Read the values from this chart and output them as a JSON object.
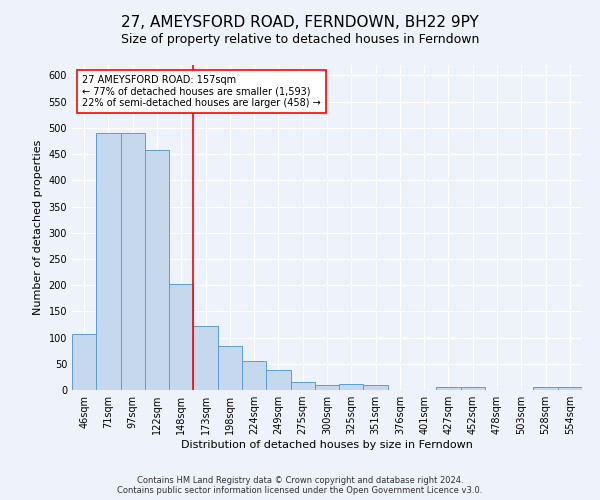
{
  "title1": "27, AMEYSFORD ROAD, FERNDOWN, BH22 9PY",
  "title2": "Size of property relative to detached houses in Ferndown",
  "xlabel": "Distribution of detached houses by size in Ferndown",
  "ylabel": "Number of detached properties",
  "categories": [
    "46sqm",
    "71sqm",
    "97sqm",
    "122sqm",
    "148sqm",
    "173sqm",
    "198sqm",
    "224sqm",
    "249sqm",
    "275sqm",
    "300sqm",
    "325sqm",
    "351sqm",
    "376sqm",
    "401sqm",
    "427sqm",
    "452sqm",
    "478sqm",
    "503sqm",
    "528sqm",
    "554sqm"
  ],
  "values": [
    107,
    490,
    490,
    457,
    203,
    122,
    84,
    55,
    38,
    16,
    10,
    12,
    10,
    0,
    0,
    5,
    5,
    0,
    0,
    6,
    6
  ],
  "bar_color": "#c5d8ed",
  "bar_edge_color": "#5a9fd4",
  "red_line_index": 4.5,
  "annotation_text": "27 AMEYSFORD ROAD: 157sqm\n← 77% of detached houses are smaller (1,593)\n22% of semi-detached houses are larger (458) →",
  "annotation_box_color": "white",
  "annotation_box_edge": "red",
  "ylim": [
    0,
    620
  ],
  "yticks": [
    0,
    50,
    100,
    150,
    200,
    250,
    300,
    350,
    400,
    450,
    500,
    550,
    600
  ],
  "footer": "Contains HM Land Registry data © Crown copyright and database right 2024.\nContains public sector information licensed under the Open Government Licence v3.0.",
  "bg_color": "#eef2fa",
  "grid_color": "#ffffff",
  "title1_fontsize": 11,
  "title2_fontsize": 9,
  "xlabel_fontsize": 8,
  "ylabel_fontsize": 8,
  "tick_fontsize": 7,
  "footer_fontsize": 6
}
